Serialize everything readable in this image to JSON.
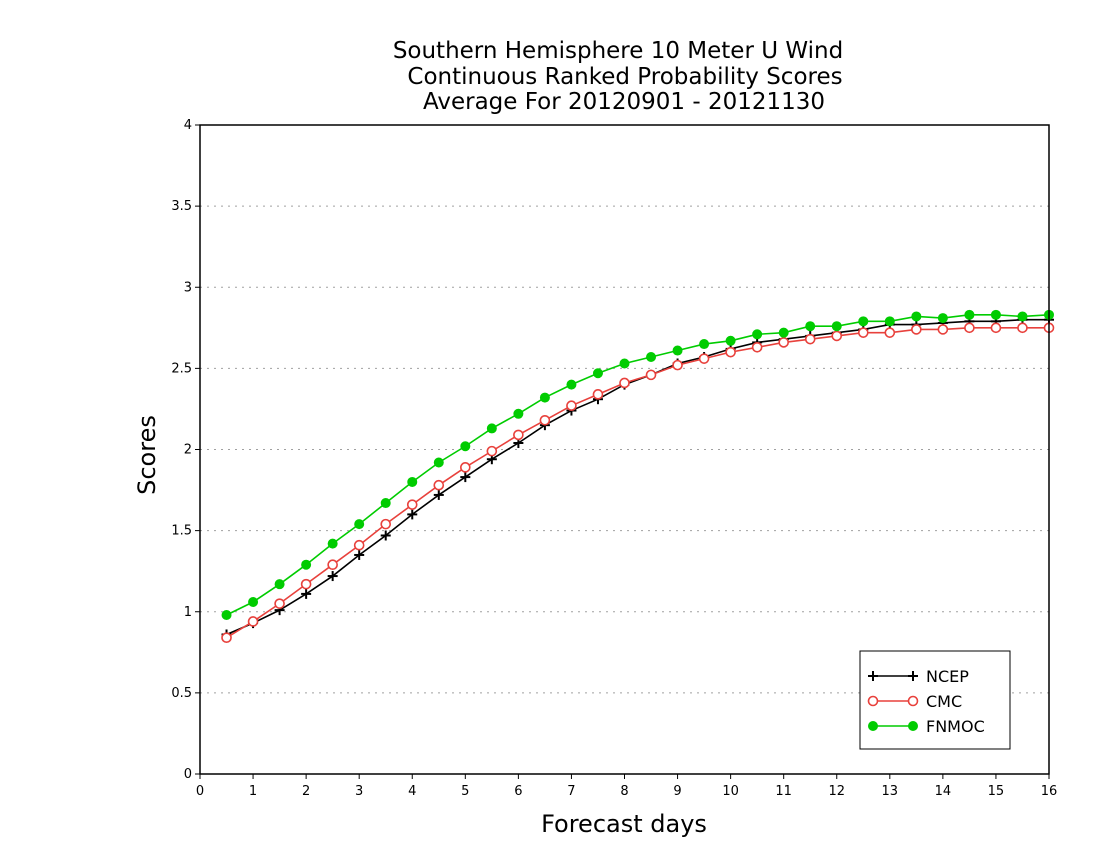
{
  "chart_data": {
    "type": "line",
    "title_lines": [
      "Southern Hemisphere 10 Meter U Wind",
      "Continuous Ranked Probability Scores",
      "Average For 20120901 - 20121130"
    ],
    "xlabel": "Forecast days",
    "ylabel": "Scores",
    "xlim": [
      0,
      16
    ],
    "ylim": [
      0,
      4
    ],
    "x_ticks": [
      "0",
      "1",
      "2",
      "3",
      "4",
      "5",
      "6",
      "7",
      "8",
      "9",
      "10",
      "11",
      "12",
      "13",
      "14",
      "15",
      "16"
    ],
    "y_ticks": [
      "0",
      "0.5",
      "1",
      "1.5",
      "2",
      "2.5",
      "3",
      "3.5",
      "4"
    ],
    "grid": "horizontal-dotted",
    "legend_position": "bottom-right",
    "x": [
      0.5,
      1,
      1.5,
      2,
      2.5,
      3,
      3.5,
      4,
      4.5,
      5,
      5.5,
      6,
      6.5,
      7,
      7.5,
      8,
      8.5,
      9,
      9.5,
      10,
      10.5,
      11,
      11.5,
      12,
      12.5,
      13,
      13.5,
      14,
      14.5,
      15,
      15.5,
      16
    ],
    "series": [
      {
        "name": "NCEP",
        "color": "#000000",
        "marker": "plus",
        "values": [
          0.86,
          0.93,
          1.01,
          1.11,
          1.22,
          1.35,
          1.47,
          1.6,
          1.72,
          1.83,
          1.94,
          2.04,
          2.15,
          2.24,
          2.31,
          2.4,
          2.46,
          2.53,
          2.57,
          2.62,
          2.66,
          2.68,
          2.7,
          2.72,
          2.74,
          2.77,
          2.77,
          2.78,
          2.79,
          2.79,
          2.8,
          2.8
        ]
      },
      {
        "name": "CMC",
        "color": "#e8413c",
        "marker": "open-circle",
        "values": [
          0.84,
          0.94,
          1.05,
          1.17,
          1.29,
          1.41,
          1.54,
          1.66,
          1.78,
          1.89,
          1.99,
          2.09,
          2.18,
          2.27,
          2.34,
          2.41,
          2.46,
          2.52,
          2.56,
          2.6,
          2.63,
          2.66,
          2.68,
          2.7,
          2.72,
          2.72,
          2.74,
          2.74,
          2.75,
          2.75,
          2.75,
          2.75
        ]
      },
      {
        "name": "FNMOC",
        "color": "#00cc00",
        "marker": "filled-circle",
        "values": [
          0.98,
          1.06,
          1.17,
          1.29,
          1.42,
          1.54,
          1.67,
          1.8,
          1.92,
          2.02,
          2.13,
          2.22,
          2.32,
          2.4,
          2.47,
          2.53,
          2.57,
          2.61,
          2.65,
          2.67,
          2.71,
          2.72,
          2.76,
          2.76,
          2.79,
          2.79,
          2.82,
          2.81,
          2.83,
          2.83,
          2.82,
          2.83
        ]
      }
    ]
  }
}
